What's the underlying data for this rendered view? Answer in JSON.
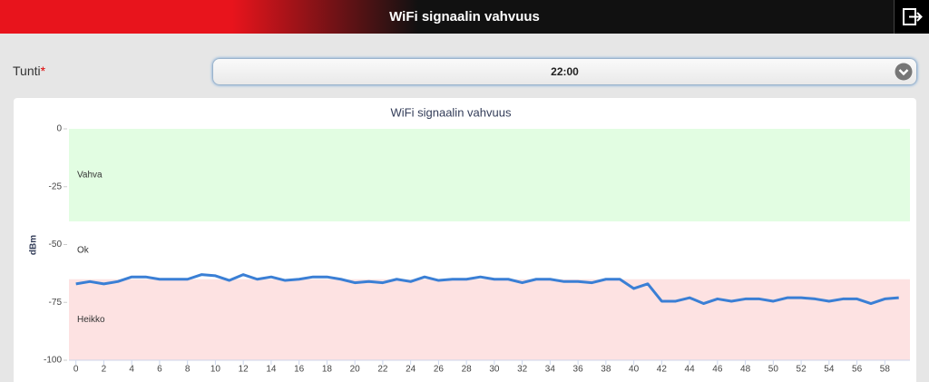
{
  "header": {
    "title": "WiFi signaalin vahvuus"
  },
  "form": {
    "label": "Tunti",
    "required": "*",
    "value": "22:00"
  },
  "chart_data": {
    "type": "line",
    "title": "WiFi signaalin vahvuus",
    "y_label": "dBm",
    "x": [
      0,
      1,
      2,
      3,
      4,
      5,
      6,
      7,
      8,
      9,
      10,
      11,
      12,
      13,
      14,
      15,
      16,
      17,
      18,
      19,
      20,
      21,
      22,
      23,
      24,
      25,
      26,
      27,
      28,
      29,
      30,
      31,
      32,
      33,
      34,
      35,
      36,
      37,
      38,
      39,
      40,
      41,
      42,
      43,
      44,
      45,
      46,
      47,
      48,
      49,
      50,
      51,
      52,
      53,
      54,
      55,
      56,
      57,
      58,
      59
    ],
    "series": [
      {
        "color": "#3a7fd5",
        "values": [
          -67,
          -66,
          -67,
          -66,
          -64,
          -64,
          -65,
          -65,
          -65,
          -63,
          -63.5,
          -65.5,
          -63,
          -65,
          -64,
          -65.5,
          -65,
          -64,
          -64,
          -65,
          -66.5,
          -66,
          -66.5,
          -65,
          -66,
          -64,
          -65.5,
          -65,
          -65,
          -64,
          -65,
          -65,
          -66.5,
          -65,
          -65,
          -66,
          -66,
          -66.5,
          -65,
          -65,
          -69,
          -67,
          -74.5,
          -74.5,
          -73,
          -75.5,
          -73.5,
          -74.5,
          -73.5,
          -73.5,
          -74.5,
          -73,
          -73,
          -73.5,
          -74.5,
          -73.5,
          -73.5,
          -75.5,
          -73.5,
          -73
        ]
      }
    ],
    "bands": [
      {
        "label": "Vahva",
        "from": -40,
        "to": 0,
        "color": "#e2fde2"
      },
      {
        "label": "Ok",
        "from": -65,
        "to": -40,
        "color": "#ffffff"
      },
      {
        "label": "Heikko",
        "from": -100,
        "to": -65,
        "color": "#fde2e2"
      }
    ],
    "xlim": [
      -0.5,
      59.8
    ],
    "ylim": [
      -100,
      0
    ],
    "xticks": [
      0,
      2,
      4,
      6,
      8,
      10,
      12,
      14,
      16,
      18,
      20,
      22,
      24,
      26,
      28,
      30,
      32,
      34,
      36,
      38,
      40,
      42,
      44,
      46,
      48,
      50,
      52,
      54,
      56,
      58
    ],
    "yticks": [
      0,
      -25,
      -50,
      -75,
      -100
    ]
  }
}
